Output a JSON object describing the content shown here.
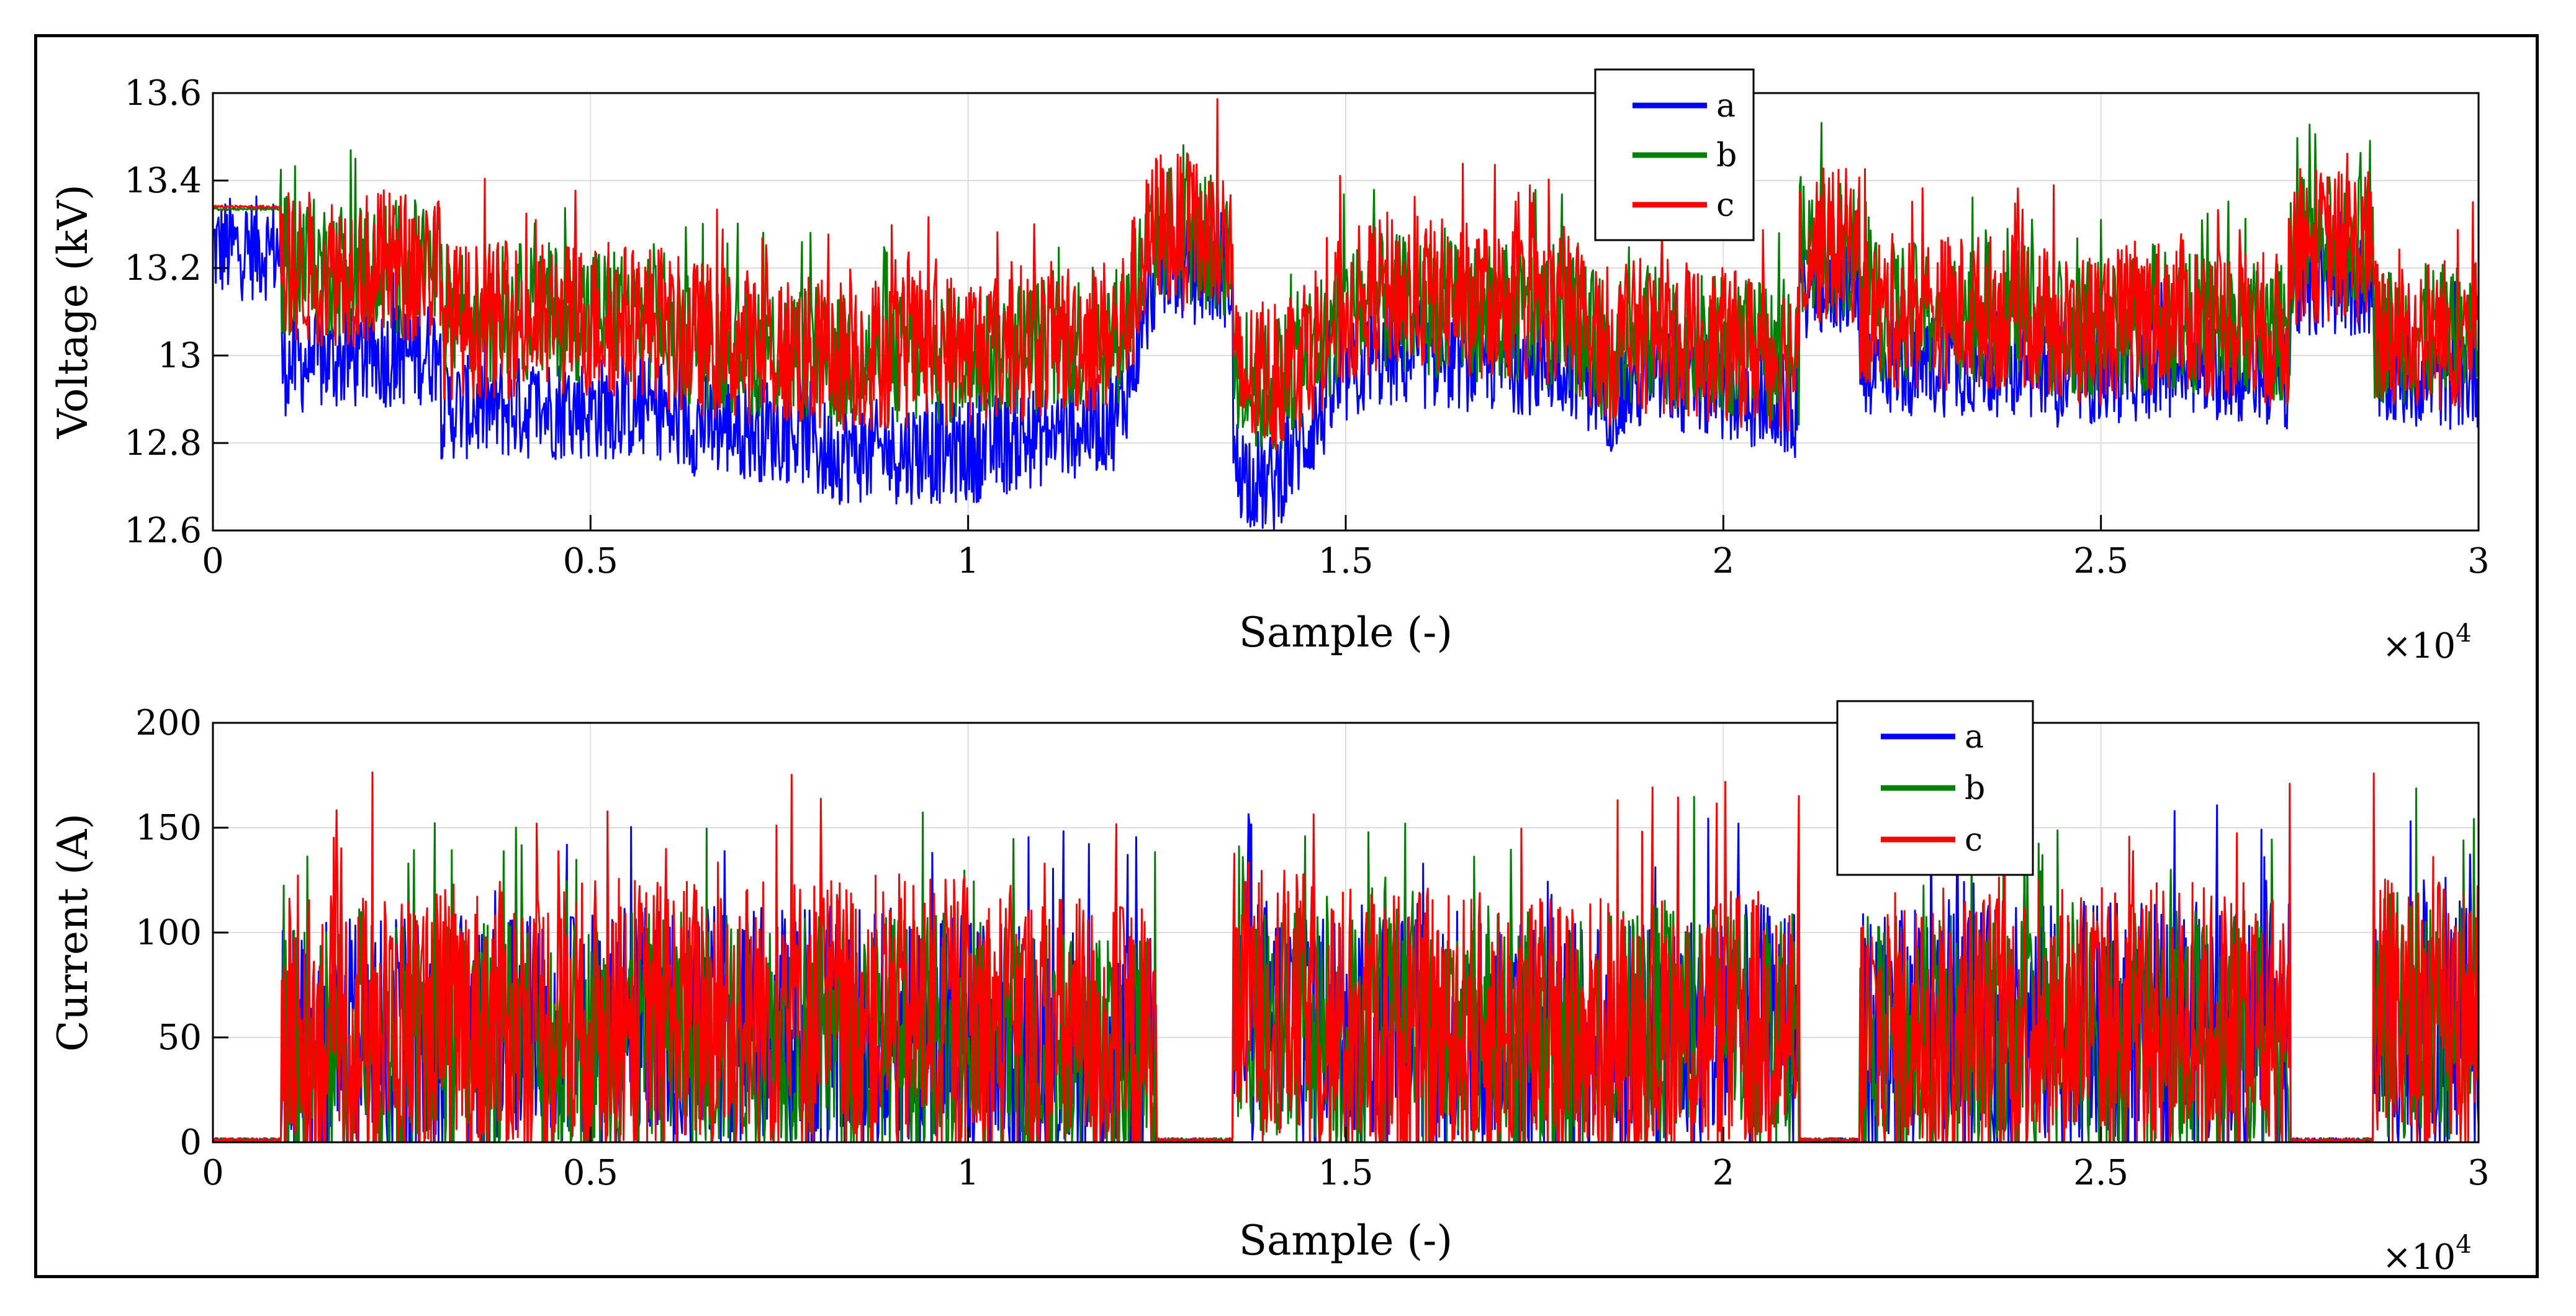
{
  "chart_data": [
    {
      "type": "line",
      "ylabel": "Voltage (kV)",
      "xlabel": "Sample (-)",
      "x_exponent": "×10",
      "x_exponent_power": "4",
      "xlim": [
        0,
        3
      ],
      "ylim": [
        12.6,
        13.6
      ],
      "xticks": [
        "0",
        "0.5",
        "1",
        "1.5",
        "2",
        "2.5",
        "3"
      ],
      "yticks": [
        "12.6",
        "12.8",
        "13",
        "13.2",
        "13.4",
        "13.6"
      ],
      "grid": true,
      "legend_position": "top-center",
      "series": [
        {
          "name": "a",
          "color": "#0000ff",
          "x": [
            0,
            0.09,
            0.09,
            0.3,
            0.3,
            0.6,
            0.6,
            0.8,
            0.8,
            1.0,
            1.2,
            1.25,
            1.35,
            1.35,
            1.4,
            1.5,
            1.55,
            1.8,
            1.85,
            1.9,
            2.0,
            2.1,
            2.1,
            2.18,
            2.18,
            2.4,
            2.45,
            2.6,
            2.75,
            2.75,
            2.86,
            2.86,
            3.0
          ],
          "values": [
            13.245,
            13.245,
            12.98,
            13.01,
            12.88,
            12.88,
            12.85,
            12.82,
            12.78,
            12.78,
            12.86,
            13.2,
            13.18,
            12.75,
            12.7,
            12.95,
            13.0,
            12.98,
            12.9,
            12.95,
            12.92,
            12.88,
            13.16,
            13.16,
            12.98,
            12.98,
            12.95,
            12.98,
            12.95,
            13.15,
            13.16,
            12.95,
            12.95
          ]
        },
        {
          "name": "b",
          "color": "#008000",
          "x": [
            0,
            0.09,
            0.09,
            0.3,
            0.3,
            0.6,
            0.6,
            0.8,
            0.8,
            1.0,
            1.2,
            1.25,
            1.35,
            1.35,
            1.4,
            1.5,
            1.55,
            1.8,
            1.85,
            1.9,
            2.0,
            2.1,
            2.1,
            2.18,
            2.18,
            2.4,
            2.45,
            2.6,
            2.75,
            2.75,
            2.86,
            2.86,
            3.0
          ],
          "values": [
            13.335,
            13.335,
            13.2,
            13.2,
            13.1,
            13.1,
            13.05,
            13.0,
            12.98,
            13.0,
            13.05,
            13.29,
            13.24,
            12.95,
            12.92,
            13.1,
            13.12,
            13.08,
            13.0,
            13.05,
            13.02,
            13.0,
            13.25,
            13.25,
            13.1,
            13.1,
            13.05,
            13.08,
            13.05,
            13.25,
            13.26,
            13.05,
            13.05
          ]
        },
        {
          "name": "c",
          "color": "#ff0000",
          "x": [
            0,
            0.09,
            0.09,
            0.3,
            0.3,
            0.6,
            0.6,
            0.8,
            0.8,
            1.0,
            1.2,
            1.25,
            1.35,
            1.35,
            1.4,
            1.5,
            1.55,
            1.8,
            1.85,
            1.9,
            2.0,
            2.1,
            2.1,
            2.18,
            2.18,
            2.4,
            2.45,
            2.6,
            2.75,
            2.75,
            2.86,
            2.86,
            3.0
          ],
          "values": [
            13.34,
            13.34,
            13.2,
            13.2,
            13.08,
            13.08,
            13.05,
            13.0,
            13.0,
            13.02,
            13.05,
            13.3,
            13.25,
            12.95,
            12.95,
            13.1,
            13.15,
            13.1,
            13.02,
            13.05,
            13.02,
            13.0,
            13.25,
            13.25,
            13.1,
            13.1,
            13.05,
            13.1,
            13.05,
            13.25,
            13.25,
            13.05,
            13.05
          ]
        }
      ]
    },
    {
      "type": "line",
      "ylabel": "Current (A)",
      "xlabel": "Sample (-)",
      "x_exponent": "×10",
      "x_exponent_power": "4",
      "xlim": [
        0,
        3
      ],
      "ylim": [
        0,
        200
      ],
      "xticks": [
        "0",
        "0.5",
        "1",
        "1.5",
        "2",
        "2.5",
        "3"
      ],
      "yticks": [
        "0",
        "50",
        "100",
        "150",
        "200"
      ],
      "grid": true,
      "legend_position": "top-right",
      "series": [
        {
          "name": "a",
          "color": "#0000ff",
          "x": [
            0,
            0.09,
            0.09,
            0.3,
            0.6,
            0.8,
            1.0,
            1.25,
            1.25,
            1.35,
            1.35,
            1.5,
            1.8,
            1.9,
            2.1,
            2.1,
            2.18,
            2.18,
            2.45,
            2.75,
            2.75,
            2.86,
            2.86,
            3.0
          ],
          "values": [
            0,
            0,
            45,
            48,
            52,
            55,
            50,
            40,
            0,
            0,
            60,
            55,
            45,
            50,
            55,
            0,
            0,
            50,
            55,
            55,
            0,
            0,
            55,
            55
          ]
        },
        {
          "name": "b",
          "color": "#008000",
          "x": [
            0,
            0.09,
            0.09,
            0.3,
            0.6,
            0.8,
            1.0,
            1.25,
            1.25,
            1.35,
            1.35,
            1.5,
            1.8,
            1.9,
            2.1,
            2.1,
            2.18,
            2.18,
            2.45,
            2.75,
            2.75,
            2.86,
            2.86,
            3.0
          ],
          "values": [
            0,
            0,
            42,
            45,
            50,
            52,
            48,
            38,
            0,
            0,
            58,
            52,
            50,
            55,
            58,
            0,
            0,
            48,
            50,
            52,
            0,
            0,
            60,
            60
          ]
        },
        {
          "name": "c",
          "color": "#ff0000",
          "x": [
            0,
            0.09,
            0.09,
            0.3,
            0.6,
            0.8,
            1.0,
            1.25,
            1.25,
            1.35,
            1.35,
            1.5,
            1.8,
            1.9,
            2.1,
            2.1,
            2.18,
            2.18,
            2.45,
            2.75,
            2.75,
            2.86,
            2.86,
            3.0
          ],
          "values": [
            0,
            0,
            50,
            55,
            60,
            62,
            58,
            45,
            0,
            0,
            70,
            55,
            50,
            52,
            55,
            0,
            0,
            52,
            58,
            55,
            0,
            0,
            58,
            58
          ]
        }
      ]
    }
  ]
}
